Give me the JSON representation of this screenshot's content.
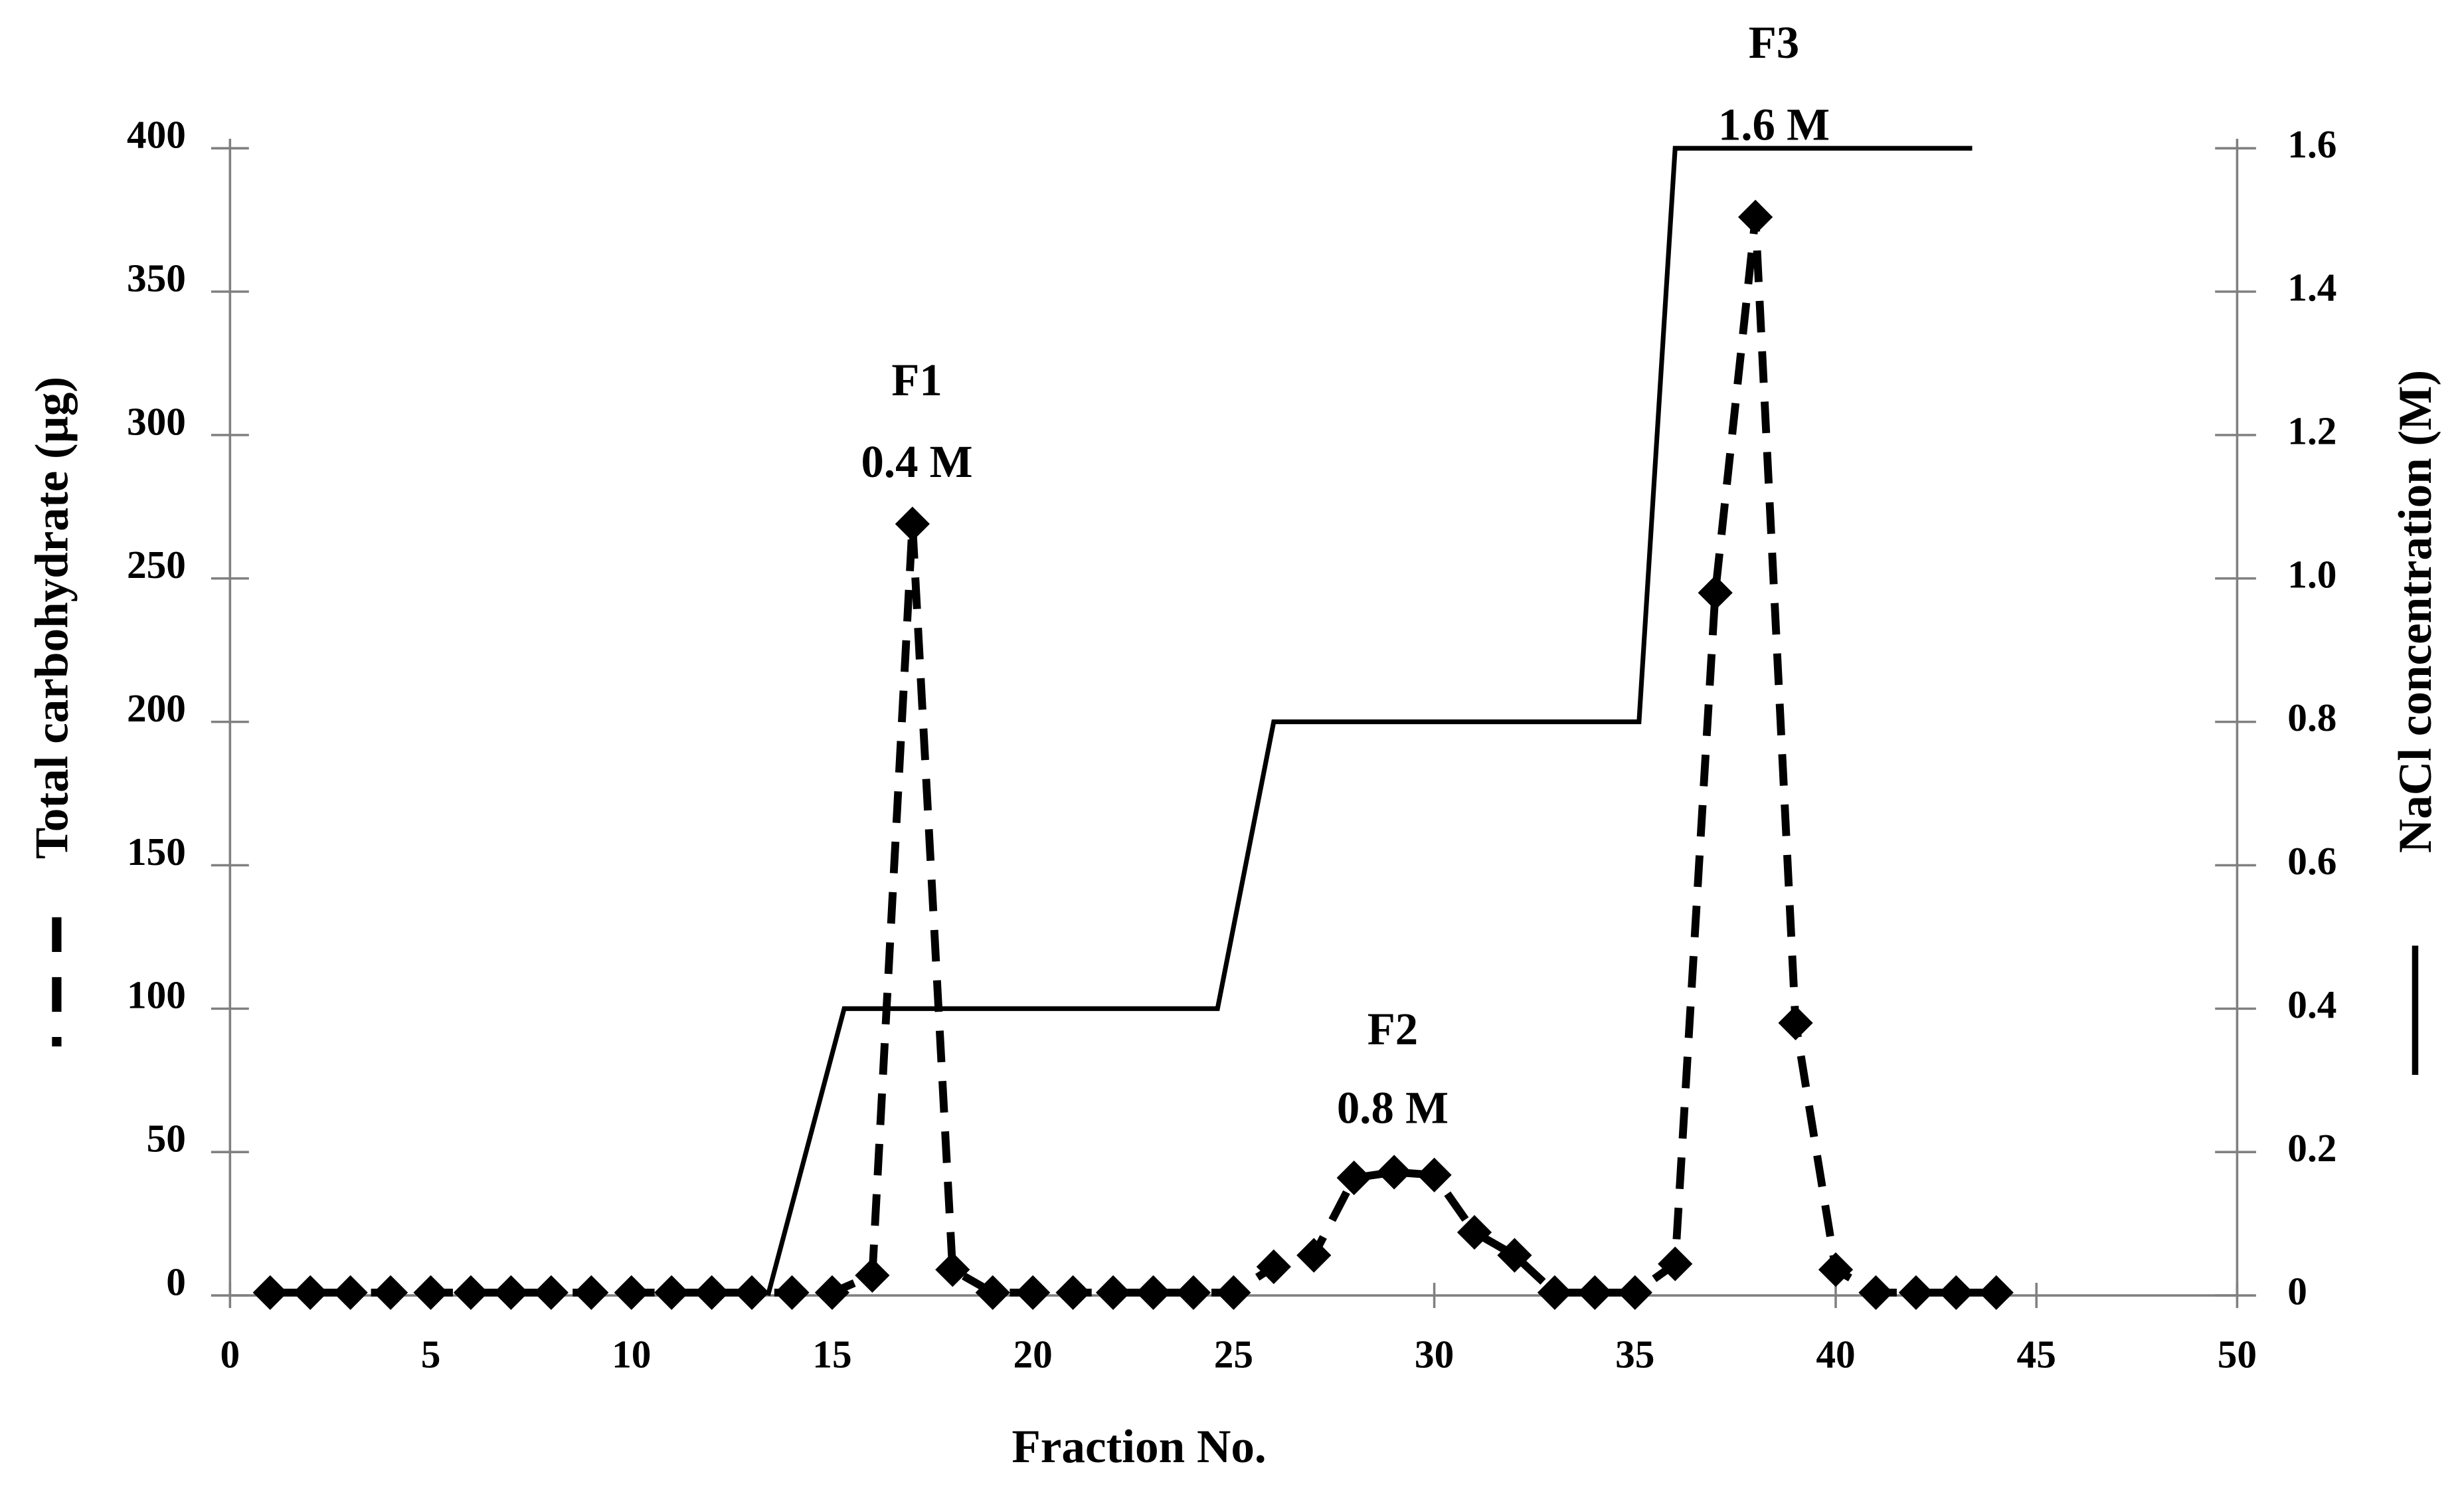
{
  "chart_data": {
    "type": "line",
    "xlabel": "Fraction No.",
    "ylabel": "Total carbohydrate (µg)",
    "y2label": "NaCl concentration (M)",
    "xlim": [
      0,
      50
    ],
    "xticks": [
      0,
      5,
      10,
      15,
      20,
      25,
      30,
      35,
      40,
      45,
      50
    ],
    "ylim": [
      0,
      400
    ],
    "yticks": [
      0,
      50,
      100,
      150,
      200,
      250,
      300,
      350,
      400
    ],
    "y2lim": [
      0,
      1.6
    ],
    "y2ticks": [
      0,
      0.2,
      0.4,
      0.6,
      0.8,
      {
        "value": 1,
        "label": "1.0"
      },
      1.2,
      1.4,
      1.6
    ],
    "series": [
      {
        "color": "#000000",
        "dashed": true,
        "marker": "diamond",
        "x": [
          1,
          2,
          3,
          4,
          5,
          6,
          7,
          8,
          9,
          10,
          11,
          12,
          13,
          14,
          15,
          16,
          17,
          18,
          19,
          20,
          21,
          22,
          23,
          24,
          25,
          26,
          27,
          28,
          29,
          30,
          31,
          32,
          33,
          34,
          35,
          36,
          37,
          38,
          39,
          40,
          41,
          42,
          43,
          44
        ],
        "values": [
          1,
          1,
          1,
          1,
          1,
          1,
          1,
          1,
          1,
          1,
          1,
          1,
          1,
          1,
          1,
          7,
          269,
          9,
          1,
          1,
          1,
          1,
          1,
          1,
          1,
          10,
          14,
          41,
          43,
          42,
          22,
          14,
          1,
          1,
          1,
          11,
          245,
          376,
          95,
          9,
          1,
          1,
          1,
          1
        ]
      },
      {
        "color": "#000000",
        "dashed": false,
        "axis": "y2",
        "x": [
          13.4,
          15.3,
          24.6,
          26,
          35.1,
          36,
          43.4
        ],
        "values": [
          0,
          0.4,
          0.4,
          0.8,
          0.8,
          1.6,
          1.6
        ]
      }
    ],
    "annotations": [
      "F1",
      "0.4 M",
      "F2",
      "0.8 M",
      "F3",
      "1.6 M"
    ]
  }
}
